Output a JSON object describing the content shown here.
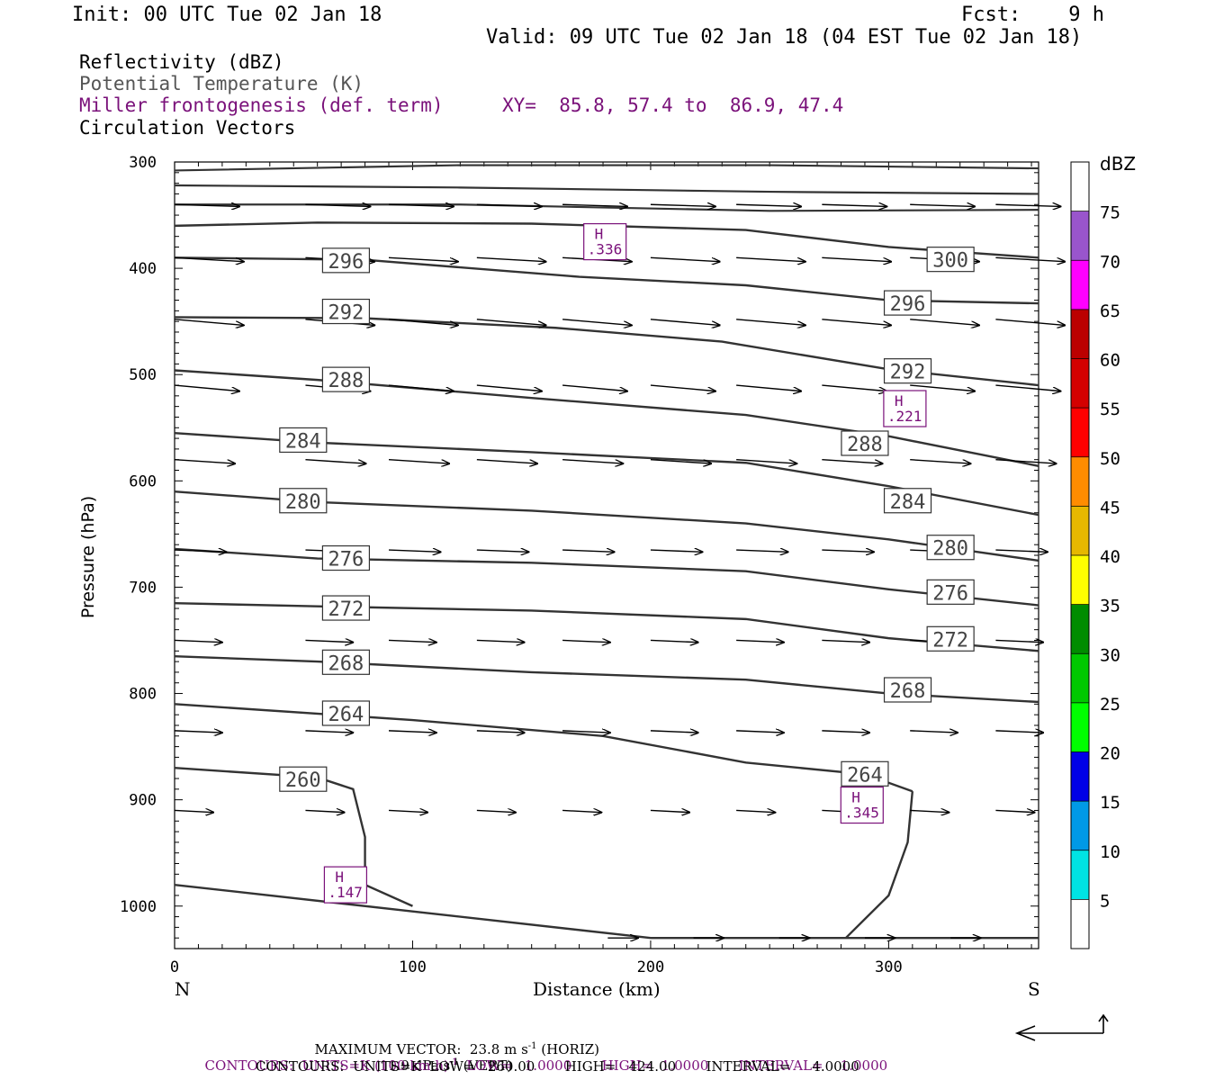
{
  "header": {
    "init": "Init: 00 UTC Tue 02 Jan 18",
    "fcst": "Fcst:    9 h",
    "valid": "Valid: 09 UTC Tue 02 Jan 18 (04 EST Tue 02 Jan 18)"
  },
  "legend": {
    "reflectivity": "Reflectivity (dBZ)",
    "theta": "Potential Temperature (K)",
    "miller": "Miller frontogenesis (def. term)",
    "xy": "XY=  85.8, 57.4 to  86.9, 47.4",
    "circulation": "Circulation Vectors"
  },
  "footer": {
    "maxvec": "MAXIMUM VECTOR:  23.8 m s",
    "maxvec_horiz": " (HORIZ)",
    "maxvec_vert_val": "11.9 dPa s",
    "maxvec_vert": " (VERT)",
    "exp_minus1": "-1",
    "contours1_a": "CONTOURS:  UNITS=K (100 km h)",
    "contours1_b": "  LOW=   1.0000       HIGH=  1.0000       INTERVAL=    1.0000",
    "contours2": "CONTOURS:  UNITS=K  LOW=   260.00       HIGH=   424.00       INTERVAL=     4.0000"
  },
  "colorbar": {
    "unit": "dBZ",
    "levels": [
      5,
      10,
      15,
      20,
      25,
      30,
      35,
      40,
      45,
      50,
      55,
      60,
      65,
      70,
      75
    ],
    "colors": [
      "#ffffff",
      "#00e3e3",
      "#0099e6",
      "#0000e6",
      "#00ff00",
      "#00c800",
      "#008c00",
      "#ffff00",
      "#e6b800",
      "#ff8c00",
      "#ff0000",
      "#d40000",
      "#bb0000",
      "#ff00ff",
      "#9955cc",
      "#ffffff"
    ]
  },
  "chart_data": {
    "type": "cross-section",
    "xlabel": "Distance (km)",
    "ylabel": "Pressure (hPa)",
    "x_left_label": "N",
    "x_right_label": "S",
    "xlim": [
      0,
      363
    ],
    "ylim": [
      1040,
      300
    ],
    "xticks": [
      0,
      100,
      200,
      300
    ],
    "yticks": [
      300,
      400,
      500,
      600,
      700,
      800,
      900,
      1000
    ],
    "theta_contours": [
      {
        "value": 300,
        "label": "300",
        "label_x": 326,
        "label_p": 392,
        "points": [
          [
            0,
            360
          ],
          [
            60,
            357
          ],
          [
            150,
            358
          ],
          [
            240,
            364
          ],
          [
            300,
            380
          ],
          [
            363,
            390
          ]
        ]
      },
      {
        "value": 296,
        "label": "296",
        "label_x": 72,
        "label_p": 393,
        "points": [
          [
            0,
            390
          ],
          [
            80,
            392
          ],
          [
            170,
            408
          ],
          [
            240,
            416
          ],
          [
            300,
            430
          ],
          [
            363,
            433
          ]
        ]
      },
      {
        "value": 296,
        "label": "296",
        "label_x": 308,
        "label_p": 433,
        "points": []
      },
      {
        "value": 292,
        "label": "292",
        "label_x": 72,
        "label_p": 441,
        "points": [
          [
            0,
            446
          ],
          [
            80,
            447
          ],
          [
            160,
            456
          ],
          [
            230,
            469
          ],
          [
            300,
            495
          ],
          [
            363,
            510
          ]
        ]
      },
      {
        "value": 292,
        "label": "292",
        "label_x": 308,
        "label_p": 497,
        "points": []
      },
      {
        "value": 288,
        "label": "288",
        "label_x": 72,
        "label_p": 505,
        "points": [
          [
            0,
            496
          ],
          [
            60,
            505
          ],
          [
            150,
            522
          ],
          [
            240,
            538
          ],
          [
            300,
            558
          ],
          [
            363,
            586
          ]
        ]
      },
      {
        "value": 288,
        "label": "288",
        "label_x": 290,
        "label_p": 565,
        "points": []
      },
      {
        "value": 284,
        "label": "284",
        "label_x": 54,
        "label_p": 562,
        "points": [
          [
            0,
            555
          ],
          [
            60,
            564
          ],
          [
            150,
            573
          ],
          [
            240,
            583
          ],
          [
            300,
            605
          ],
          [
            363,
            632
          ]
        ]
      },
      {
        "value": 284,
        "label": "284",
        "label_x": 308,
        "label_p": 619,
        "points": []
      },
      {
        "value": 280,
        "label": "280",
        "label_x": 54,
        "label_p": 619,
        "points": [
          [
            0,
            610
          ],
          [
            60,
            620
          ],
          [
            150,
            628
          ],
          [
            240,
            640
          ],
          [
            300,
            655
          ],
          [
            363,
            675
          ]
        ]
      },
      {
        "value": 280,
        "label": "280",
        "label_x": 326,
        "label_p": 663,
        "points": []
      },
      {
        "value": 276,
        "label": "276",
        "label_x": 72,
        "label_p": 673,
        "points": [
          [
            0,
            664
          ],
          [
            60,
            673
          ],
          [
            150,
            677
          ],
          [
            240,
            685
          ],
          [
            300,
            702
          ],
          [
            363,
            717
          ]
        ]
      },
      {
        "value": 276,
        "label": "276",
        "label_x": 326,
        "label_p": 705,
        "points": []
      },
      {
        "value": 272,
        "label": "272",
        "label_x": 72,
        "label_p": 720,
        "points": [
          [
            0,
            715
          ],
          [
            60,
            718
          ],
          [
            150,
            722
          ],
          [
            240,
            730
          ],
          [
            300,
            748
          ],
          [
            363,
            760
          ]
        ]
      },
      {
        "value": 272,
        "label": "272",
        "label_x": 326,
        "label_p": 749,
        "points": []
      },
      {
        "value": 268,
        "label": "268",
        "label_x": 72,
        "label_p": 771,
        "points": [
          [
            0,
            765
          ],
          [
            60,
            770
          ],
          [
            150,
            780
          ],
          [
            240,
            787
          ],
          [
            300,
            800
          ],
          [
            363,
            808
          ]
        ]
      },
      {
        "value": 268,
        "label": "268",
        "label_x": 308,
        "label_p": 797,
        "points": []
      },
      {
        "value": 264,
        "label": "264",
        "label_x": 72,
        "label_p": 819,
        "points": [
          [
            0,
            810
          ],
          [
            100,
            825
          ],
          [
            180,
            840
          ],
          [
            240,
            865
          ],
          [
            290,
            876
          ],
          [
            310,
            892
          ]
        ]
      },
      {
        "value": 264,
        "label": "264",
        "label_x": 290,
        "label_p": 876,
        "points": []
      },
      {
        "value": 260,
        "label": "260",
        "label_x": 54,
        "label_p": 881,
        "points": [
          [
            0,
            870
          ],
          [
            60,
            879
          ],
          [
            75,
            890
          ],
          [
            80,
            935
          ],
          [
            80,
            980
          ],
          [
            100,
            1000
          ]
        ]
      }
    ],
    "theta_closing_contour": [
      [
        310,
        892
      ],
      [
        308,
        940
      ],
      [
        300,
        990
      ],
      [
        282,
        1030
      ]
    ],
    "theta_bottom_contour": [
      [
        0,
        980
      ],
      [
        100,
        1005
      ],
      [
        200,
        1030
      ],
      [
        363,
        1030
      ]
    ],
    "frontogenesis_highs": [
      {
        "label": "H",
        "value": ".336",
        "x": 181,
        "p": 375
      },
      {
        "label": "H",
        "value": ".221",
        "x": 307,
        "p": 532
      },
      {
        "label": "H",
        "value": ".345",
        "x": 289,
        "p": 905
      },
      {
        "label": "H",
        "value": ".147",
        "x": 72,
        "p": 980
      }
    ],
    "circulation_vectors": [
      {
        "p": 340,
        "x": [
          0,
          55,
          90,
          127,
          163,
          200,
          236,
          272,
          309,
          345
        ],
        "u": 30,
        "w": -1
      },
      {
        "p": 390,
        "x": [
          0,
          55,
          90,
          127,
          163,
          200,
          236,
          272,
          309,
          345
        ],
        "u": 32,
        "w": -2
      },
      {
        "p": 448,
        "x": [
          0,
          55,
          90,
          127,
          163,
          200,
          236,
          272,
          309,
          345
        ],
        "u": 32,
        "w": -3
      },
      {
        "p": 510,
        "x": [
          0,
          55,
          90,
          127,
          163,
          200,
          236,
          272,
          309,
          345
        ],
        "u": 30,
        "w": -3
      },
      {
        "p": 580,
        "x": [
          0,
          55,
          90,
          127,
          163,
          200,
          236,
          272,
          309,
          345
        ],
        "u": 28,
        "w": -2
      },
      {
        "p": 665,
        "x": [
          0,
          55,
          90,
          127,
          163,
          200,
          236,
          272,
          309,
          345
        ],
        "u": 24,
        "w": -1
      },
      {
        "p": 750,
        "x": [
          0,
          55,
          90,
          127,
          163,
          200,
          236,
          272,
          309,
          345
        ],
        "u": 22,
        "w": -1
      },
      {
        "p": 835,
        "x": [
          0,
          55,
          90,
          127,
          163,
          200,
          236,
          272,
          309,
          345
        ],
        "u": 22,
        "w": -1
      },
      {
        "p": 910,
        "x": [
          0,
          55,
          90,
          127,
          163,
          200,
          236,
          272,
          309,
          345
        ],
        "u": 18,
        "w": -1
      },
      {
        "p": 1030,
        "x": [
          182,
          218,
          254,
          290,
          326
        ],
        "u": 14,
        "w": 0
      }
    ]
  }
}
